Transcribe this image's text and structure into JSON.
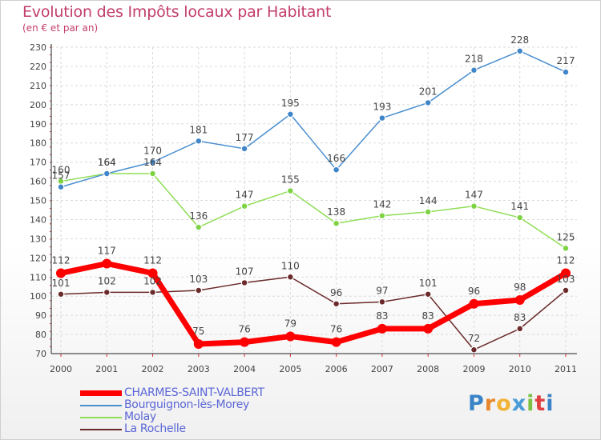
{
  "title": "Evolution des Impôts locaux par Habitant",
  "subtitle": "(en € et par an)",
  "logo": {
    "text": "Proxiti",
    "colors": [
      "#3a83c7",
      "#e8882a",
      "#f2b335",
      "#4a9bd6",
      "#7cc242",
      "#e04040",
      "#3a83c7"
    ]
  },
  "chart_data": {
    "type": "line",
    "title": "Evolution des Impôts locaux par Habitant",
    "subtitle": "(en € et par an)",
    "xlabel": "",
    "ylabel": "",
    "x": [
      "2000",
      "2001",
      "2002",
      "2003",
      "2004",
      "2005",
      "2006",
      "2007",
      "2008",
      "2009",
      "2010",
      "2011"
    ],
    "ylim": [
      70,
      230
    ],
    "yticks": [
      70,
      80,
      90,
      100,
      110,
      120,
      130,
      140,
      150,
      160,
      170,
      180,
      190,
      200,
      210,
      220,
      230
    ],
    "grid": true,
    "legend_position": "bottom-left",
    "series": [
      {
        "name": "CHARMES-SAINT-VALBERT",
        "color": "#ff0000",
        "values": [
          112,
          117,
          112,
          75,
          76,
          79,
          76,
          83,
          83,
          96,
          98,
          112
        ],
        "labels": [
          "112",
          "117",
          "112",
          "75",
          "76",
          "79",
          "76",
          "83",
          "83",
          "96",
          "98",
          "112"
        ]
      },
      {
        "name": "Bourguignon-lès-Morey",
        "color": "#4a8fd0",
        "values": [
          157,
          164,
          170,
          181,
          177,
          195,
          166,
          193,
          201,
          218,
          228,
          217
        ],
        "labels": [
          "157",
          "164",
          "170",
          "181",
          "177",
          "195",
          "166",
          "193",
          "201",
          "218",
          "228",
          "217"
        ]
      },
      {
        "name": "Molay",
        "color": "#8fdd55",
        "values": [
          160,
          164,
          164,
          136,
          147,
          155,
          138,
          142,
          144,
          147,
          141,
          125
        ],
        "labels": [
          "160",
          "164",
          "164",
          "136",
          "147",
          "155",
          "138",
          "142",
          "144",
          "147",
          "141",
          "125"
        ]
      },
      {
        "name": "La Rochelle",
        "color": "#6b2a2a",
        "values": [
          101,
          102,
          102,
          103,
          107,
          110,
          96,
          97,
          101,
          72,
          83,
          103
        ],
        "labels": [
          "101",
          "102",
          "102",
          "103",
          "107",
          "110",
          "96",
          "97",
          "101",
          "72",
          "83",
          "103"
        ]
      }
    ]
  }
}
